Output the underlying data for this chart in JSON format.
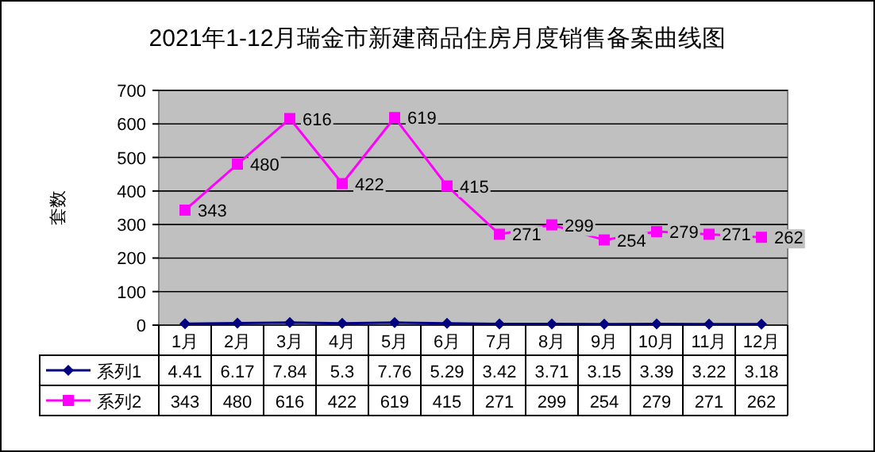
{
  "chart_data": {
    "type": "line",
    "title": "2021年1-12月瑞金市新建商品住房月度销售备案曲线图",
    "ylabel": "套数",
    "categories": [
      "1月",
      "2月",
      "3月",
      "4月",
      "5月",
      "6月",
      "7月",
      "8月",
      "9月",
      "10月",
      "11月",
      "12月"
    ],
    "series": [
      {
        "name": "系列1",
        "color": "#000080",
        "marker": "diamond",
        "values": [
          4.41,
          6.17,
          7.84,
          5.3,
          7.76,
          5.29,
          3.42,
          3.71,
          3.15,
          3.39,
          3.22,
          3.18
        ]
      },
      {
        "name": "系列2",
        "color": "#ff00ff",
        "marker": "square",
        "values": [
          343,
          480,
          616,
          422,
          619,
          415,
          271,
          299,
          254,
          279,
          271,
          262
        ]
      }
    ],
    "annotations": [
      {
        "text": "343",
        "x": "1月",
        "y": 343
      },
      {
        "text": "480",
        "x": "2月",
        "y": 480
      },
      {
        "text": "616",
        "x": "3月",
        "y": 616
      },
      {
        "text": "422",
        "x": "4月",
        "y": 422
      },
      {
        "text": "619",
        "x": "5月",
        "y": 619
      },
      {
        "text": "415",
        "x": "6月",
        "y": 415
      },
      {
        "text": "271",
        "x": "7月",
        "y": 271
      },
      {
        "text": "299",
        "x": "8月",
        "y": 299
      },
      {
        "text": "254",
        "x": "9月",
        "y": 254
      },
      {
        "text": "279",
        "x": "10月",
        "y": 279
      },
      {
        "text": "271",
        "x": "11月",
        "y": 271
      },
      {
        "text": "262",
        "x": "12月",
        "y": 262
      }
    ],
    "ylim": [
      0,
      700
    ],
    "yticks": [
      0,
      100,
      200,
      300,
      400,
      500,
      600,
      700
    ],
    "grid": "y",
    "legend": "bottom",
    "data_labels": true
  }
}
